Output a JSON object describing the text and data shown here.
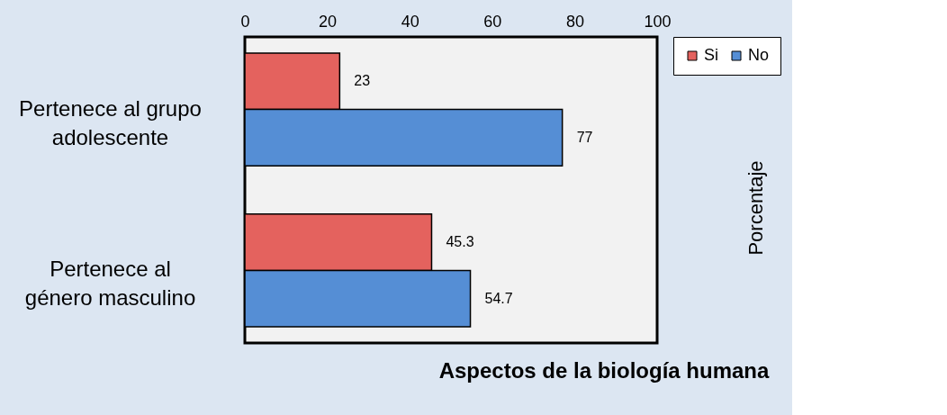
{
  "chart_data": {
    "type": "bar",
    "orientation": "horizontal",
    "categories": [
      "Pertenece al grupo adolescente",
      "Pertenece al género masculino"
    ],
    "series": [
      {
        "name": "Si",
        "color": "#e4625e",
        "values": [
          23,
          45.3
        ]
      },
      {
        "name": "No",
        "color": "#558ed5",
        "values": [
          77,
          54.7
        ]
      }
    ],
    "xlim": [
      0,
      100
    ],
    "xticks": [
      0,
      20,
      40,
      60,
      80,
      100
    ],
    "ylabel": "Porcentaje",
    "xlabel": "Aspectos de la biología humana",
    "data_labels": true,
    "legend": "top right",
    "grid": false
  }
}
